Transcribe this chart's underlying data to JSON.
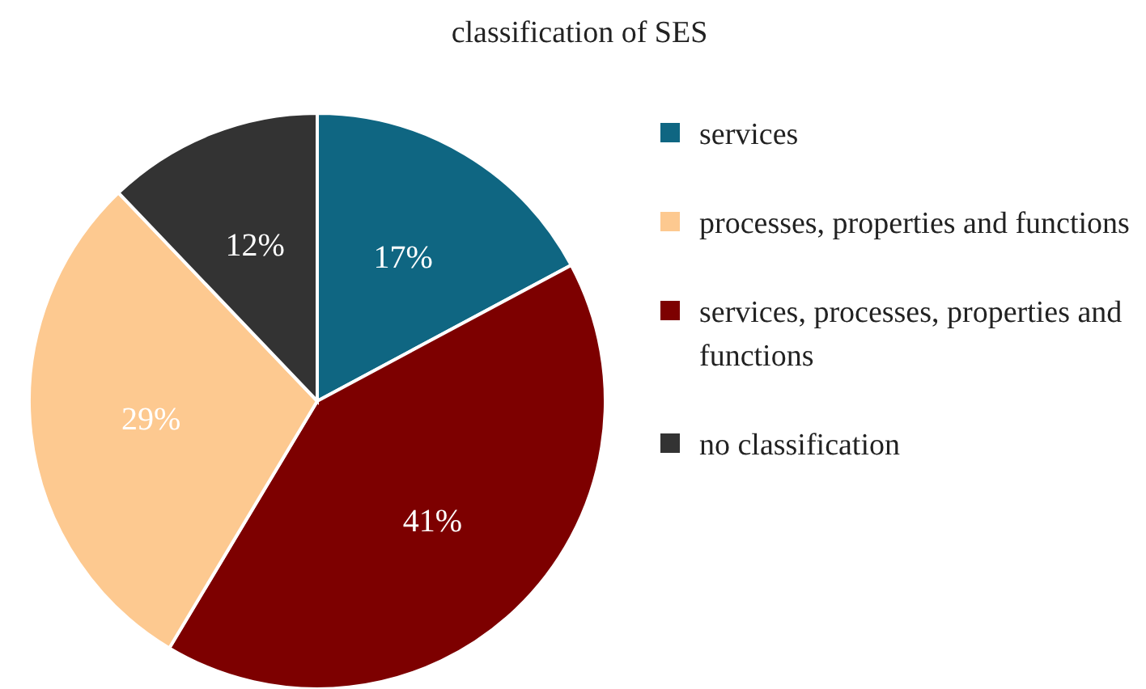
{
  "chart_data": {
    "type": "pie",
    "title": "classification of SES",
    "categories": [
      "services",
      "processes, properties and functions",
      "services, processes, properties and functions",
      "no classification"
    ],
    "values": [
      17,
      29,
      41,
      12
    ],
    "colors": [
      "#0f6682",
      "#fdc990",
      "#7d0000",
      "#333333"
    ],
    "value_labels": [
      "17%",
      "29%",
      "41%",
      "12%"
    ],
    "legend": "right"
  }
}
